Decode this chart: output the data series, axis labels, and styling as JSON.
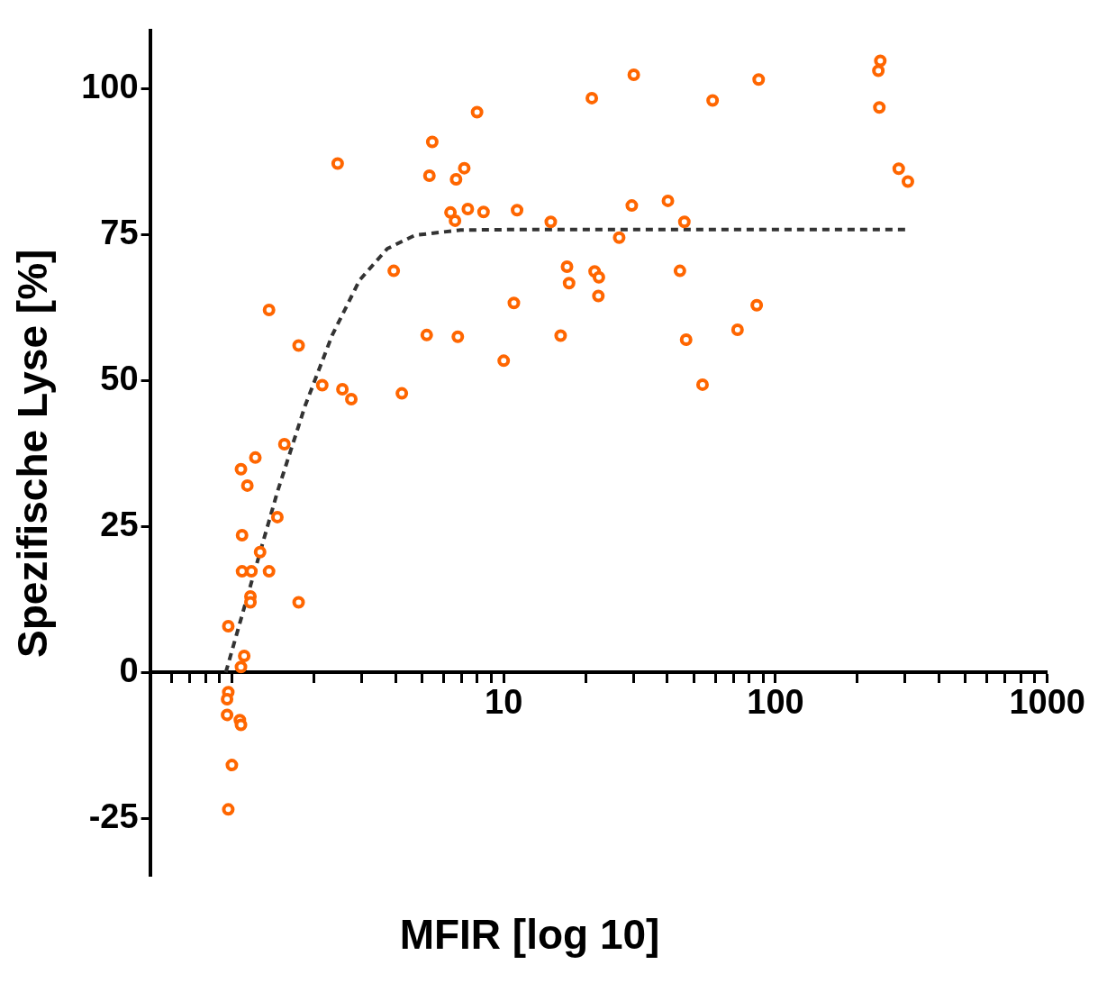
{
  "chart_data": {
    "type": "scatter",
    "xlabel": "MFIR [log 10]",
    "ylabel": "Spezifische Lyse [%]",
    "log": "x",
    "grid": false,
    "legend": false,
    "marker": "circle",
    "xlim": [
      0.5,
      1000
    ],
    "xticks": [
      {
        "value": 0.6,
        "label": null
      },
      {
        "value": 0.7,
        "label": null
      },
      {
        "value": 0.8,
        "label": null
      },
      {
        "value": 0.9,
        "label": null
      },
      {
        "value": 1,
        "label": null
      },
      {
        "value": 2,
        "label": null
      },
      {
        "value": 3,
        "label": null
      },
      {
        "value": 4,
        "label": null
      },
      {
        "value": 5,
        "label": null
      },
      {
        "value": 6,
        "label": null
      },
      {
        "value": 7,
        "label": null
      },
      {
        "value": 8,
        "label": null
      },
      {
        "value": 9,
        "label": null
      },
      10,
      {
        "value": 20,
        "label": null
      },
      {
        "value": 30,
        "label": null
      },
      {
        "value": 40,
        "label": null
      },
      {
        "value": 50,
        "label": null
      },
      {
        "value": 60,
        "label": null
      },
      {
        "value": 70,
        "label": null
      },
      {
        "value": 80,
        "label": null
      },
      {
        "value": 90,
        "label": null
      },
      100,
      {
        "value": 200,
        "label": null
      },
      {
        "value": 300,
        "label": null
      },
      {
        "value": 400,
        "label": null
      },
      {
        "value": 500,
        "label": null
      },
      {
        "value": 600,
        "label": null
      },
      {
        "value": 700,
        "label": null
      },
      {
        "value": 800,
        "label": null
      },
      {
        "value": 900,
        "label": null
      },
      1000
    ],
    "ylim": [
      -35,
      110
    ],
    "yticks": [
      -25,
      0,
      25,
      50,
      75,
      100
    ],
    "series": [
      {
        "type": "scatter",
        "color": "#ff6600",
        "x": [
          243,
          239,
          241,
          284,
          307,
          86.7,
          58.7,
          30.1,
          21.1,
          7.98,
          5.46,
          5.33,
          7.16,
          6.68,
          2.45,
          6.37,
          6.62,
          7.38,
          8.43,
          11.2,
          14.9,
          29.6,
          40.2,
          46.2,
          26.6,
          17.1,
          17.4,
          21.6,
          22.4,
          22.3,
          44.5,
          85.3,
          72.5,
          46.9,
          53.9,
          10.9,
          16.2,
          10,
          5.21,
          6.78,
          3.94,
          4.22,
          2.15,
          2.55,
          2.75,
          1.76,
          1.37,
          1.56,
          1.22,
          1.08,
          1.14,
          1.47,
          1.09,
          1.27,
          1.09,
          1.18,
          1.37,
          1.17,
          1.17,
          1.76,
          0.97,
          1.11,
          1.08,
          0.97,
          0.96,
          0.96,
          1.07,
          1.08,
          1.0,
          0.97
        ],
        "values": [
          104.8,
          103.1,
          96.8,
          86.3,
          84.1,
          101.6,
          98.0,
          102.4,
          98.4,
          96.0,
          90.9,
          85.1,
          86.4,
          84.5,
          87.2,
          78.8,
          77.4,
          79.4,
          78.9,
          79.2,
          77.2,
          80.0,
          80.8,
          77.2,
          74.5,
          69.5,
          66.7,
          68.7,
          67.7,
          64.5,
          68.8,
          62.9,
          58.7,
          57.0,
          49.3,
          63.3,
          57.7,
          53.4,
          57.8,
          57.5,
          68.8,
          47.8,
          49.2,
          48.5,
          46.8,
          56.0,
          62.1,
          39.1,
          36.8,
          34.8,
          32.0,
          26.6,
          23.5,
          20.6,
          17.3,
          17.3,
          17.3,
          13.0,
          12.0,
          12.0,
          7.9,
          2.8,
          0.9,
          -3.4,
          -4.6,
          -7.3,
          -8.2,
          -9.0,
          -15.9,
          -23.5
        ]
      },
      {
        "type": "line",
        "color": "#333333",
        "line_style": "dashed",
        "marker": "none",
        "x": [
          0.95,
          1.17,
          1.47,
          1.86,
          2.34,
          2.95,
          3.73,
          4.71,
          6.94,
          12.9,
          301
        ],
        "values": [
          0,
          14.8,
          30.9,
          45.7,
          57.8,
          67.2,
          72.6,
          74.9,
          75.8,
          75.9,
          75.9
        ]
      }
    ]
  }
}
